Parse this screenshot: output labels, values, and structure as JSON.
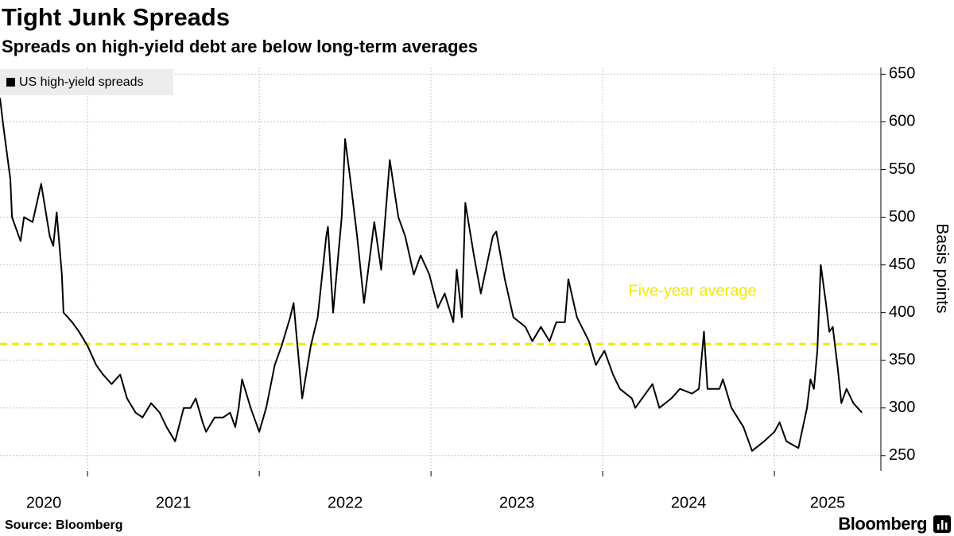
{
  "chart_data": {
    "type": "line",
    "title": "Tight Junk Spreads",
    "subtitle": "Spreads on high-yield debt are below long-term averages",
    "y_axis_label": "Basis points",
    "source": "Source: Bloomberg",
    "brand": "Bloomberg",
    "legend": "top-left",
    "grid": true,
    "xlim": [
      2020.49,
      2025.62
    ],
    "xticks": [
      2020,
      2021,
      2022,
      2023,
      2024,
      2025
    ],
    "ylim": [
      234,
      657
    ],
    "yticks": [
      250,
      300,
      350,
      400,
      450,
      500,
      550,
      600,
      650
    ],
    "reference_line": {
      "label": "Five-year average",
      "value": 367,
      "color": "#f5e800"
    },
    "x": [
      2020.49,
      2020.51,
      2020.55,
      2020.56,
      2020.61,
      2020.63,
      2020.68,
      2020.73,
      2020.78,
      2020.8,
      2020.82,
      2020.85,
      2020.86,
      2020.91,
      2020.95,
      2021.0,
      2021.05,
      2021.09,
      2021.14,
      2021.19,
      2021.23,
      2021.28,
      2021.32,
      2021.37,
      2021.42,
      2021.46,
      2021.51,
      2021.56,
      2021.6,
      2021.63,
      2021.67,
      2021.69,
      2021.74,
      2021.79,
      2021.83,
      2021.86,
      2021.88,
      2021.9,
      2021.95,
      2022.0,
      2022.04,
      2022.09,
      2022.13,
      2022.18,
      2022.2,
      2022.23,
      2022.25,
      2022.3,
      2022.34,
      2022.39,
      2022.4,
      2022.43,
      2022.48,
      2022.5,
      2022.53,
      2022.57,
      2022.61,
      2022.67,
      2022.71,
      2022.76,
      2022.81,
      2022.85,
      2022.9,
      2022.94,
      2022.99,
      2023.04,
      2023.08,
      2023.13,
      2023.15,
      2023.18,
      2023.2,
      2023.25,
      2023.29,
      2023.36,
      2023.38,
      2023.43,
      2023.48,
      2023.55,
      2023.59,
      2023.64,
      2023.69,
      2023.73,
      2023.78,
      2023.8,
      2023.85,
      2023.92,
      2023.96,
      2024.01,
      2024.06,
      2024.1,
      2024.17,
      2024.19,
      2024.29,
      2024.33,
      2024.4,
      2024.45,
      2024.52,
      2024.56,
      2024.59,
      2024.61,
      2024.68,
      2024.7,
      2024.75,
      2024.82,
      2024.87,
      2024.94,
      2025.0,
      2025.03,
      2025.07,
      2025.14,
      2025.19,
      2025.21,
      2025.23,
      2025.25,
      2025.27,
      2025.3,
      2025.32,
      2025.34,
      2025.37,
      2025.39,
      2025.42,
      2025.46,
      2025.51
    ],
    "series": [
      {
        "name": "US high-yield spreads",
        "color": "#000000",
        "values": [
          625,
          595,
          540,
          500,
          475,
          500,
          495,
          535,
          480,
          470,
          505,
          440,
          400,
          390,
          380,
          365,
          345,
          335,
          325,
          335,
          310,
          295,
          290,
          305,
          295,
          280,
          265,
          300,
          300,
          310,
          285,
          275,
          290,
          290,
          295,
          280,
          300,
          330,
          300,
          275,
          300,
          345,
          365,
          395,
          410,
          350,
          310,
          365,
          395,
          480,
          490,
          400,
          500,
          582,
          540,
          480,
          410,
          495,
          445,
          560,
          500,
          480,
          440,
          460,
          440,
          405,
          420,
          390,
          445,
          395,
          515,
          460,
          420,
          480,
          485,
          435,
          395,
          385,
          370,
          385,
          370,
          390,
          390,
          435,
          395,
          370,
          345,
          360,
          335,
          320,
          310,
          300,
          325,
          300,
          310,
          320,
          315,
          320,
          380,
          320,
          320,
          330,
          300,
          280,
          255,
          265,
          275,
          285,
          265,
          258,
          300,
          330,
          320,
          360,
          450,
          410,
          380,
          385,
          340,
          305,
          320,
          305,
          295
        ]
      }
    ]
  }
}
